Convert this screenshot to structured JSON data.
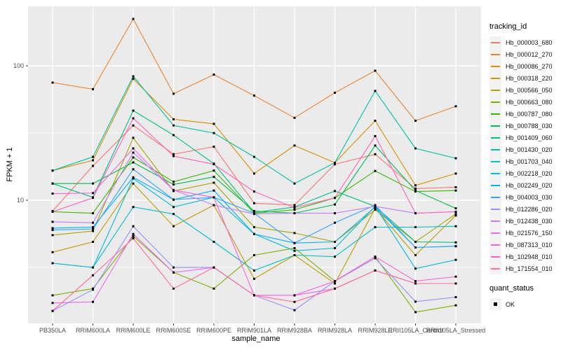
{
  "legend": {
    "tracking_title": "tracking_id",
    "quant_title": "quant_status",
    "quant_ok_label": "OK"
  },
  "style": {
    "panel_bg": "#EBEBEB",
    "grid_color": "#FFFFFF",
    "tick_text_color": "#4D4D4D",
    "marker_color": "#000000",
    "legend_key_bg": "#F2F2F2"
  },
  "chart_data": {
    "type": "line",
    "title": "",
    "xlabel": "sample_name",
    "ylabel": "FPKM + 1",
    "y_scale": "log10",
    "ylim": [
      1.2,
      280
    ],
    "grid": true,
    "legend_position": "right",
    "point_marker": "filled-black-square",
    "y_tick_labels": [
      "100",
      "10"
    ],
    "y_tick_values": [
      100,
      10
    ],
    "y_minor_tick_values": [
      31.62,
      3.162
    ],
    "categories": [
      "PB350LA",
      "RRIM600LA",
      "RRIM600LE",
      "RRIM600SE",
      "RRIM600PE",
      "RRIM901LA",
      "RRIM928BA",
      "RRIM928LA",
      "RRIM928LE",
      "RRII105LA_Control",
      "RRII105LA_Stressed"
    ],
    "series": [
      {
        "name": "Hb_000003_680",
        "color": "#F8766D",
        "values": [
          8.3,
          18,
          36,
          22,
          25,
          9.5,
          9.2,
          18.5,
          22,
          12.2,
          12.5
        ]
      },
      {
        "name": "Hb_000012_270",
        "color": "#EA8331",
        "values": [
          75,
          67,
          223,
          62,
          86,
          60,
          41,
          63,
          92,
          39,
          50
        ]
      },
      {
        "name": "Hb_000086_270",
        "color": "#D89000",
        "values": [
          16.6,
          19.8,
          80,
          40,
          37,
          15.8,
          25.5,
          19,
          39,
          12.9,
          15.8
        ]
      },
      {
        "name": "Hb_000318_220",
        "color": "#C09B00",
        "values": [
          4.1,
          4.9,
          13.3,
          6.4,
          9.2,
          2.6,
          3.9,
          2.4,
          8.7,
          3.9,
          7.7
        ]
      },
      {
        "name": "Hb_000566_050",
        "color": "#A3A500",
        "values": [
          5.5,
          5.9,
          29.1,
          11.7,
          13.5,
          6.3,
          5.7,
          4.9,
          8.5,
          4.9,
          7.9
        ]
      },
      {
        "name": "Hb_000663_080",
        "color": "#7CAE00",
        "values": [
          1.96,
          2.2,
          5.4,
          2.9,
          2.2,
          3.9,
          4.4,
          2.5,
          3.8,
          1.47,
          1.65
        ]
      },
      {
        "name": "Hb_000787_080",
        "color": "#39B600",
        "values": [
          8.2,
          8.0,
          20.8,
          13.7,
          16.6,
          8.0,
          8.5,
          10.4,
          16.5,
          11.6,
          11.8
        ]
      },
      {
        "name": "Hb_000788_030",
        "color": "#00BB4E",
        "values": [
          13.3,
          13.3,
          19.1,
          13.1,
          14.9,
          8.3,
          8.0,
          9.3,
          25.5,
          11.8,
          8.7
        ]
      },
      {
        "name": "Hb_001409_060",
        "color": "#00BF7D",
        "values": [
          13.3,
          10.5,
          46.4,
          30.5,
          18.7,
          8.1,
          8.9,
          11.7,
          9.0,
          4.9,
          4.85
        ]
      },
      {
        "name": "Hb_001430_020",
        "color": "#00C1A3",
        "values": [
          16.6,
          21,
          83.5,
          36,
          31.6,
          21,
          13.3,
          19,
          65,
          24.3,
          20.5
        ]
      },
      {
        "name": "Hb_001703_040",
        "color": "#00BFC4",
        "values": [
          3.4,
          3.16,
          8.9,
          7.9,
          4.9,
          3.0,
          3.9,
          3.8,
          6.3,
          6.3,
          6.4
        ]
      },
      {
        "name": "Hb_002218_020",
        "color": "#00BBDA",
        "values": [
          3.4,
          3.16,
          14.5,
          8.9,
          10.5,
          5.6,
          4.2,
          4.4,
          9.0,
          3.1,
          3.6
        ]
      },
      {
        "name": "Hb_002249_020",
        "color": "#00B0F6",
        "values": [
          6.2,
          6.3,
          14.8,
          10.1,
          11.8,
          5.6,
          4.8,
          4.9,
          8.9,
          4.45,
          4.55
        ]
      },
      {
        "name": "Hb_004003_030",
        "color": "#35A2FF",
        "values": [
          6.0,
          6.1,
          17.0,
          10.1,
          10.5,
          8.0,
          4.8,
          6.8,
          9.2,
          4.45,
          4.55
        ]
      },
      {
        "name": "Hb_012286_020",
        "color": "#9590FF",
        "values": [
          1.5,
          2.16,
          6.4,
          3.16,
          3.16,
          1.96,
          1.52,
          2.5,
          3.7,
          1.76,
          1.9
        ]
      },
      {
        "name": "Hb_012438_030",
        "color": "#C77CFF",
        "values": [
          6.9,
          6.8,
          22.6,
          11.9,
          9.2,
          7.9,
          8.0,
          8.0,
          9.0,
          8.0,
          8.2
        ]
      },
      {
        "name": "Hb_021576_150",
        "color": "#E76BF3",
        "values": [
          1.72,
          1.75,
          5.6,
          2.9,
          3.16,
          1.96,
          1.96,
          2.2,
          3.0,
          2.4,
          2.4
        ]
      },
      {
        "name": "Hb_087313_010",
        "color": "#FA62DB",
        "values": [
          11.2,
          11.3,
          24.3,
          11.9,
          10.5,
          1.96,
          1.96,
          2.5,
          3.8,
          2.5,
          2.7
        ]
      },
      {
        "name": "Hb_102948_010",
        "color": "#FF62BC",
        "values": [
          8.2,
          10.4,
          40.7,
          21.3,
          18.5,
          11.6,
          8.8,
          10.4,
          30,
          8.0,
          8.2
        ]
      },
      {
        "name": "Hb_171554_010",
        "color": "#FF6A98",
        "values": [
          1.5,
          2.76,
          5.2,
          2.2,
          3.16,
          1.96,
          1.75,
          2.2,
          3.0,
          2.4,
          2.4
        ]
      }
    ]
  }
}
